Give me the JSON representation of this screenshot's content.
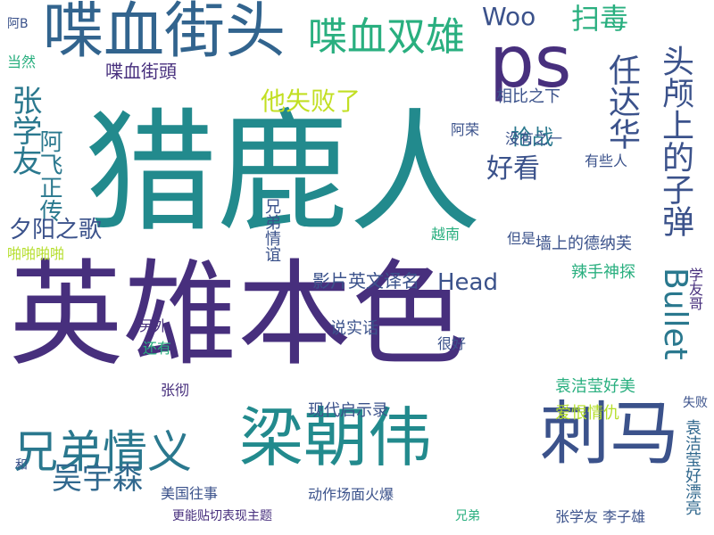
{
  "cloud": {
    "words": [
      {
        "text": "猎鹿人",
        "color": "#228a8d"
      },
      {
        "text": "英雄本色",
        "color": "#472f7d"
      },
      {
        "text": "喋血街头",
        "color": "#32648e"
      },
      {
        "text": "梁朝伟",
        "color": "#228a8d"
      },
      {
        "text": "刺马",
        "color": "#3b528b"
      },
      {
        "text": "ps",
        "color": "#472f7d"
      },
      {
        "text": "兄弟情义",
        "color": "#2a788e"
      },
      {
        "text": "喋血双雄",
        "color": "#29af7f"
      },
      {
        "text": "头颅上的子弹",
        "color": "#3b528b"
      },
      {
        "text": "任达华",
        "color": "#3b528b"
      },
      {
        "text": "张学友",
        "color": "#2a788e"
      },
      {
        "text": "Bullet",
        "color": "#2a788e"
      },
      {
        "text": "吴宇森",
        "color": "#31688e"
      },
      {
        "text": "扫毒",
        "color": "#29af7f"
      },
      {
        "text": "Woo",
        "color": "#3b528b"
      },
      {
        "text": "阿飞正传",
        "color": "#2a788e"
      },
      {
        "text": "他失败了",
        "color": "#c2df23"
      },
      {
        "text": "好看",
        "color": "#3b528b"
      },
      {
        "text": "夕阳之歌",
        "color": "#3b528b"
      },
      {
        "text": "枪战",
        "color": "#2a788e"
      },
      {
        "text": "Head",
        "color": "#3b528b"
      },
      {
        "text": "影片英文译名",
        "color": "#3b528b"
      },
      {
        "text": "喋血街頭",
        "color": "#472f7d"
      },
      {
        "text": "相比之下",
        "color": "#3b528b"
      },
      {
        "text": "墙上的德纳芙",
        "color": "#3b528b"
      },
      {
        "text": "辣手神探",
        "color": "#29af7f"
      },
      {
        "text": "袁洁莹好美",
        "color": "#29af7f"
      },
      {
        "text": "袁洁莹好漂亮",
        "color": "#31688e"
      },
      {
        "text": "兄弟情谊",
        "color": "#3b528b"
      },
      {
        "text": "爱恨情仇",
        "color": "#b5de2b"
      },
      {
        "text": "现代启示录",
        "color": "#3b528b"
      },
      {
        "text": "动作场面火爆",
        "color": "#3b528b"
      },
      {
        "text": "张学友 李子雄",
        "color": "#3b528b"
      },
      {
        "text": "美国往事",
        "color": "#3b528b"
      },
      {
        "text": "更能贴切表现主题",
        "color": "#472f7d"
      },
      {
        "text": "说实话",
        "color": "#3b528b"
      },
      {
        "text": "啪啪啪啪",
        "color": "#b5de2b"
      },
      {
        "text": "阿荣",
        "color": "#3b528b"
      },
      {
        "text": "没有之一",
        "color": "#3b528b"
      },
      {
        "text": "有些人",
        "color": "#3b528b"
      },
      {
        "text": "但是",
        "color": "#3b528b"
      },
      {
        "text": "越南",
        "color": "#29af7f"
      },
      {
        "text": "学友哥",
        "color": "#472f7d"
      },
      {
        "text": "很好",
        "color": "#3b528b"
      },
      {
        "text": "另外",
        "color": "#472f7d"
      },
      {
        "text": "还有",
        "color": "#29af7f"
      },
      {
        "text": "张彻",
        "color": "#472f7d"
      },
      {
        "text": "当然",
        "color": "#29af7f"
      },
      {
        "text": "阿B",
        "color": "#3b528b"
      },
      {
        "text": "失败",
        "color": "#3b528b"
      },
      {
        "text": "兄弟",
        "color": "#29af7f"
      },
      {
        "text": "和",
        "color": "#3b528b"
      }
    ]
  }
}
